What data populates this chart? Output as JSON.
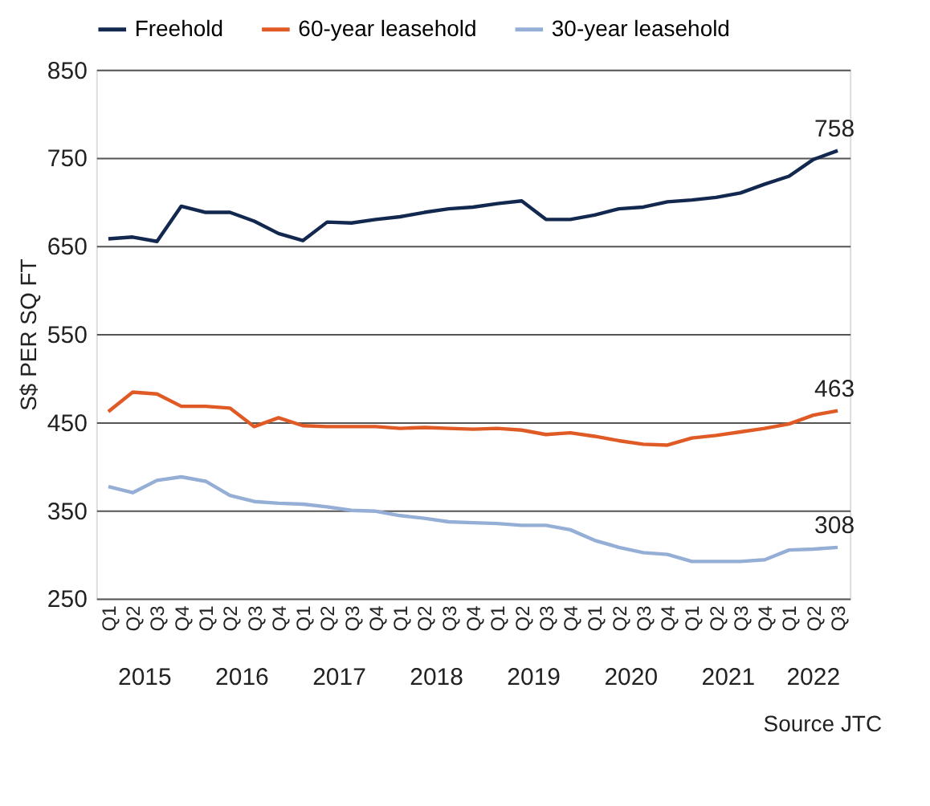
{
  "chart_data": {
    "type": "line",
    "ylabel": "S$ PER SQ FT",
    "categories": [
      "Q1",
      "Q2",
      "Q3",
      "Q4",
      "Q1",
      "Q2",
      "Q3",
      "Q4",
      "Q1",
      "Q2",
      "Q3",
      "Q4",
      "Q1",
      "Q2",
      "Q3",
      "Q4",
      "Q1",
      "Q2",
      "Q3",
      "Q4",
      "Q1",
      "Q2",
      "Q3",
      "Q4",
      "Q1",
      "Q2",
      "Q3",
      "Q4",
      "Q1",
      "Q2",
      "Q3"
    ],
    "series": [
      {
        "name": "Freehold",
        "color": "#13284f",
        "values": [
          658,
          660,
          655,
          695,
          688,
          688,
          678,
          664,
          656,
          677,
          676,
          680,
          683,
          688,
          692,
          694,
          698,
          701,
          680,
          680,
          685,
          692,
          694,
          700,
          702,
          705,
          710,
          720,
          729,
          748,
          758
        ],
        "value_labels": [
          null,
          null,
          null,
          null,
          null,
          null,
          null,
          null,
          null,
          null,
          null,
          null,
          null,
          null,
          null,
          null,
          null,
          null,
          null,
          null,
          null,
          null,
          null,
          null,
          null,
          null,
          null,
          null,
          null,
          null,
          "758"
        ]
      },
      {
        "name": "60-year leasehold",
        "color": "#e05a25",
        "values": [
          462,
          484,
          482,
          468,
          468,
          466,
          445,
          455,
          446,
          445,
          445,
          445,
          443,
          444,
          443,
          442,
          443,
          441,
          436,
          438,
          434,
          429,
          425,
          424,
          432,
          435,
          439,
          443,
          448,
          458,
          463
        ],
        "value_labels": [
          null,
          null,
          null,
          null,
          null,
          null,
          null,
          null,
          null,
          null,
          null,
          null,
          null,
          null,
          null,
          null,
          null,
          null,
          null,
          null,
          null,
          null,
          null,
          null,
          null,
          null,
          null,
          null,
          null,
          null,
          "463"
        ]
      },
      {
        "name": "30-year leasehold",
        "color": "#94aed6",
        "values": [
          377,
          370,
          384,
          388,
          383,
          367,
          360,
          358,
          357,
          354,
          350,
          349,
          344,
          341,
          337,
          336,
          335,
          333,
          333,
          328,
          316,
          308,
          302,
          300,
          292,
          292,
          292,
          294,
          305,
          306,
          308
        ],
        "value_labels": [
          null,
          null,
          null,
          null,
          null,
          null,
          null,
          null,
          null,
          null,
          null,
          null,
          null,
          null,
          null,
          null,
          null,
          null,
          null,
          null,
          null,
          null,
          null,
          null,
          null,
          null,
          null,
          null,
          null,
          null,
          "308"
        ]
      }
    ],
    "ylim": [
      250,
      850
    ],
    "yticks": [
      250,
      350,
      450,
      550,
      650,
      750,
      850
    ],
    "grid": "y",
    "legend": "top",
    "marker": "none",
    "line_style": "solid",
    "annotations": [
      "2015",
      "2016",
      "2017",
      "2018",
      "2019",
      "2020",
      "2021",
      "2022",
      "Source JTC"
    ]
  }
}
